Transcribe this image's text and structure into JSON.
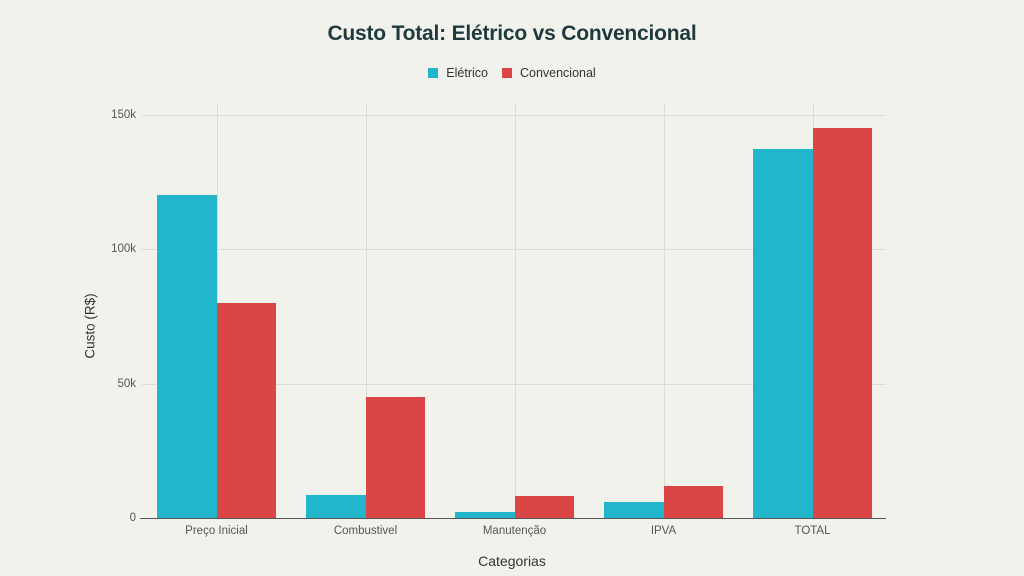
{
  "chart_data": {
    "type": "bar",
    "title": "Custo Total: Elétrico vs Convencional",
    "xlabel": "Categorias",
    "ylabel": "Custo (R$)",
    "categories": [
      "Preço Inicial",
      "Combustivel",
      "Manutenção",
      "IPVA",
      "TOTAL"
    ],
    "series": [
      {
        "name": "Elétrico",
        "color": "#21b6cb",
        "values": [
          120000,
          8600,
          2400,
          6000,
          137000
        ]
      },
      {
        "name": "Convencional",
        "color": "#db4545",
        "values": [
          80000,
          45000,
          8000,
          12000,
          145000
        ]
      }
    ],
    "ylim": [
      0,
      154000
    ],
    "yticks": [
      0,
      50000,
      100000,
      150000
    ],
    "ytick_labels": [
      "0",
      "50k",
      "100k",
      "150k"
    ],
    "grid": true,
    "legend_position": "top-center"
  },
  "legend": {
    "items": [
      {
        "label": "Elétrico",
        "color": "#21b6cb"
      },
      {
        "label": "Convencional",
        "color": "#db4545"
      }
    ]
  }
}
